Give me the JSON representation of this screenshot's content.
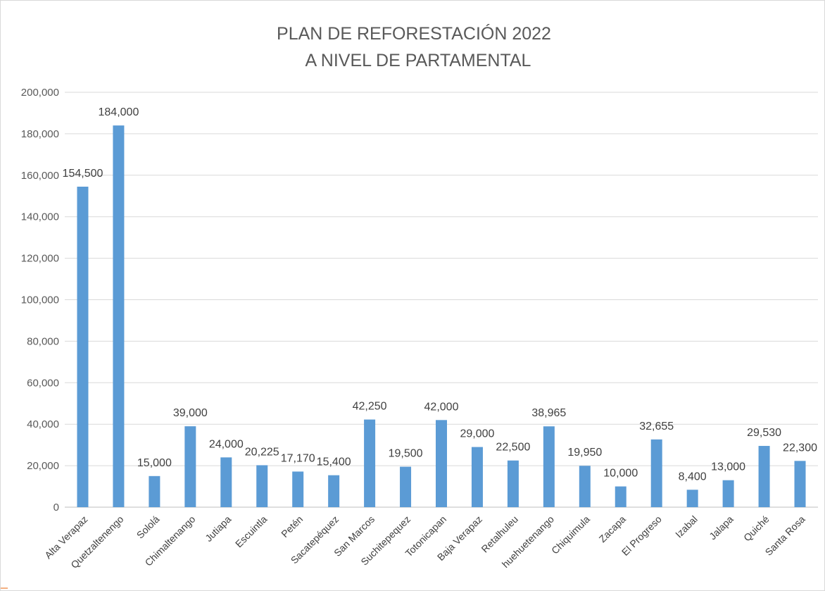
{
  "chart_data": {
    "type": "bar",
    "title": "PLAN DE REFORESTACIÓN 2022",
    "subtitle": "A NIVEL DE PARTAMENTAL",
    "xlabel": "",
    "ylabel": "",
    "ylim": [
      0,
      200000
    ],
    "yticks": [
      "0",
      "20,000",
      "40,000",
      "60,000",
      "80,000",
      "100,000",
      "120,000",
      "140,000",
      "160,000",
      "180,000",
      "200,000"
    ],
    "grid": true,
    "bar_color": "#5b9bd5",
    "categories": [
      "Alta Verapaz",
      "Quetzaltenengo",
      "Sololá",
      "Chimaltenango",
      "Jutiapa",
      "Escuintla",
      "Petén",
      "Sacatepéquez",
      "San Marcos",
      "Suchitepequez",
      "Totonicapan",
      "Baja Verapaz",
      "Retalhuleu",
      "huehuetenango",
      "Chiquimula",
      "Zacapa",
      "El Progreso",
      "Izabal",
      "Jalapa",
      "Quiché",
      "Santa Rosa"
    ],
    "values": [
      154500,
      184000,
      15000,
      39000,
      24000,
      20225,
      17170,
      15400,
      42250,
      19500,
      42000,
      29000,
      22500,
      38965,
      19950,
      10000,
      32655,
      8400,
      13000,
      29530,
      22300
    ],
    "data_labels": [
      "154,500",
      "184,000",
      "15,000",
      "39,000",
      "24,000",
      "20,225",
      "17,170",
      "15,400",
      "42,250",
      "19,500",
      "42,000",
      "29,000",
      "22,500",
      "38,965",
      "19,950",
      "10,000",
      "32,655",
      "8,400",
      "13,000",
      "29,530",
      "22,300"
    ]
  }
}
